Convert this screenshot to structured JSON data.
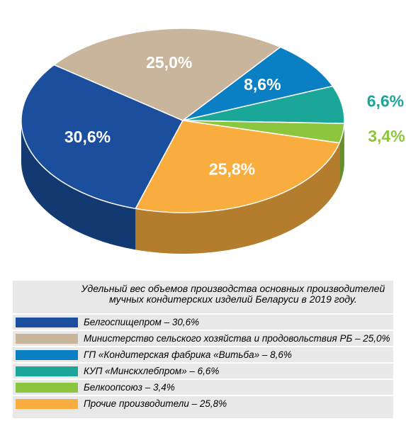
{
  "chart_data": {
    "type": "pie",
    "title": "Удельный вес объемов производства основных производителей мучных кондитерских изделий Беларуси в 2019 году.",
    "categories": [
      "Белгоспищепром – 30,6%",
      "Министерство сельского хозяйства и продовольствия РБ – 25,0%",
      "ГП «Кондитерская фабрика «Витьба» – 8,6%",
      "КУП «Минскхлебпром» – 6,6%",
      "Белкоопсоюз – 3,4%",
      "Прочие производители – 25,8%"
    ],
    "values": [
      30.6,
      25.0,
      8.6,
      6.6,
      3.4,
      25.8
    ],
    "value_labels": [
      "30,6%",
      "25,0%",
      "8,6%",
      "6,6%",
      "3,4%",
      "25,8%"
    ],
    "colors": [
      "#1b4f9e",
      "#c9b59b",
      "#0a7fc4",
      "#1aa79a",
      "#8cc63f",
      "#f9ad3f"
    ],
    "legend": "bottom"
  }
}
